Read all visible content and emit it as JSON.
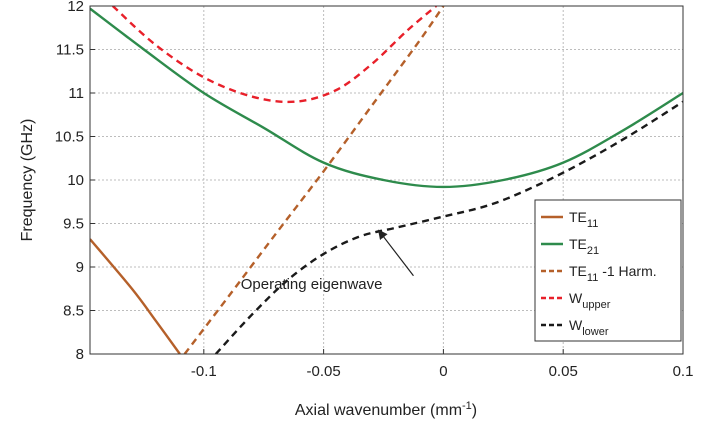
{
  "chart_data": {
    "type": "line",
    "xlabel": "Axial wavenumber (mm",
    "xlabel_sup": "-1",
    "xlabel_end": ")",
    "ylabel": "Frequency (GHz)",
    "xlim": [
      -0.1475,
      0.1
    ],
    "ylim": [
      8,
      12
    ],
    "grid": true,
    "legend_position": "bottom-right",
    "x_ticks": [
      -0.1,
      -0.05,
      0,
      0.05,
      0.1
    ],
    "x_tick_labels": [
      "-0.1",
      "-0.05",
      "0",
      "0.05",
      "0.1"
    ],
    "y_ticks": [
      8,
      8.5,
      9,
      9.5,
      10,
      10.5,
      11,
      11.5,
      12
    ],
    "y_tick_labels": [
      "8",
      "8.5",
      "9",
      "9.5",
      "10",
      "10.5",
      "11",
      "11.5",
      "12"
    ],
    "series": [
      {
        "name": "TE",
        "sub": "11",
        "suffix": "",
        "color": "#b5602a",
        "dash": "solid",
        "x": [
          -0.1475,
          -0.13,
          -0.12,
          -0.11
        ],
        "y": [
          9.32,
          8.75,
          8.38,
          8.0
        ]
      },
      {
        "name": "TE",
        "sub": "21",
        "suffix": "",
        "color": "#2e8b4c",
        "dash": "solid",
        "x": [
          -0.1475,
          -0.125,
          -0.1,
          -0.075,
          -0.05,
          -0.025,
          0,
          0.025,
          0.05,
          0.075,
          0.1
        ],
        "y": [
          11.97,
          11.5,
          11.0,
          10.6,
          10.2,
          10.0,
          9.92,
          10.0,
          10.2,
          10.57,
          11.0
        ]
      },
      {
        "name": "TE",
        "sub": "11",
        "suffix": " -1 Harm.",
        "color": "#b5602a",
        "dash": "dashed",
        "x": [
          -0.108,
          -0.09,
          -0.07,
          -0.05,
          -0.03,
          -0.01,
          0.0
        ],
        "y": [
          8.0,
          8.65,
          9.38,
          10.1,
          10.85,
          11.6,
          12.0
        ]
      },
      {
        "name": "W",
        "sub": "upper",
        "suffix": "",
        "color": "#e8202a",
        "dash": "dashed",
        "x": [
          -0.138,
          -0.12,
          -0.1,
          -0.08,
          -0.062,
          -0.045,
          -0.03,
          -0.015,
          -0.003
        ],
        "y": [
          12.0,
          11.55,
          11.18,
          10.96,
          10.9,
          11.03,
          11.33,
          11.72,
          12.0
        ]
      },
      {
        "name": "W",
        "sub": "lower",
        "suffix": "",
        "color": "#1a1a1a",
        "dash": "dashed",
        "x": [
          -0.095,
          -0.08,
          -0.065,
          -0.05,
          -0.035,
          -0.02,
          0,
          0.02,
          0.04,
          0.06,
          0.08,
          0.1
        ],
        "y": [
          8.0,
          8.45,
          8.85,
          9.15,
          9.35,
          9.45,
          9.58,
          9.72,
          9.95,
          10.23,
          10.55,
          10.9
        ]
      }
    ],
    "annotations": [
      {
        "text": "Operating eigenwave",
        "x": -0.055,
        "y": 8.75,
        "arrow_to_x": -0.027,
        "arrow_to_y": 9.42
      }
    ]
  }
}
